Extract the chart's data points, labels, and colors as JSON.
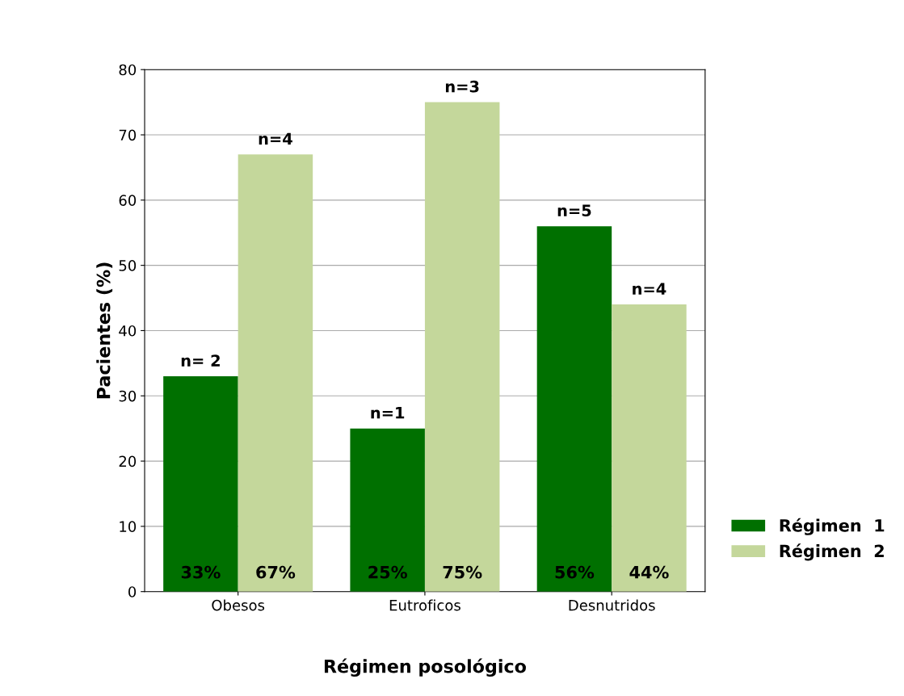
{
  "chart_data": {
    "type": "bar",
    "xlabel": "Régimen posológico",
    "ylabel": "Pacientes (%)",
    "categories": [
      "Obesos",
      "Eutroficos",
      "Desnutridos"
    ],
    "series": [
      {
        "name": "Régimen  1",
        "color": "#007000",
        "values": [
          33,
          25,
          56
        ],
        "value_labels": [
          "33%",
          "25%",
          "56%"
        ]
      },
      {
        "name": "Régimen  2",
        "color": "#c4d79b",
        "values": [
          67,
          75,
          44
        ],
        "value_labels": [
          "67%",
          "75%",
          "44%"
        ]
      }
    ],
    "annotations": [
      {
        "text": "n= 2",
        "x": "Obesos",
        "y": 33
      },
      {
        "text": "n=4",
        "x": "Obesos",
        "y": 67
      },
      {
        "text": "n=1",
        "x": "Eutroficos",
        "y": 25
      },
      {
        "text": "n=3",
        "x": "Eutroficos",
        "y": 75
      },
      {
        "text": "n=5",
        "x": "Desnutridos",
        "y": 56
      },
      {
        "text": "n=4",
        "x": "Desnutridos",
        "y": 44
      }
    ],
    "ylim": [
      0,
      80
    ],
    "yticks": [
      0,
      10,
      20,
      30,
      40,
      50,
      60,
      70,
      80
    ],
    "grid": "y",
    "legend": "right"
  }
}
